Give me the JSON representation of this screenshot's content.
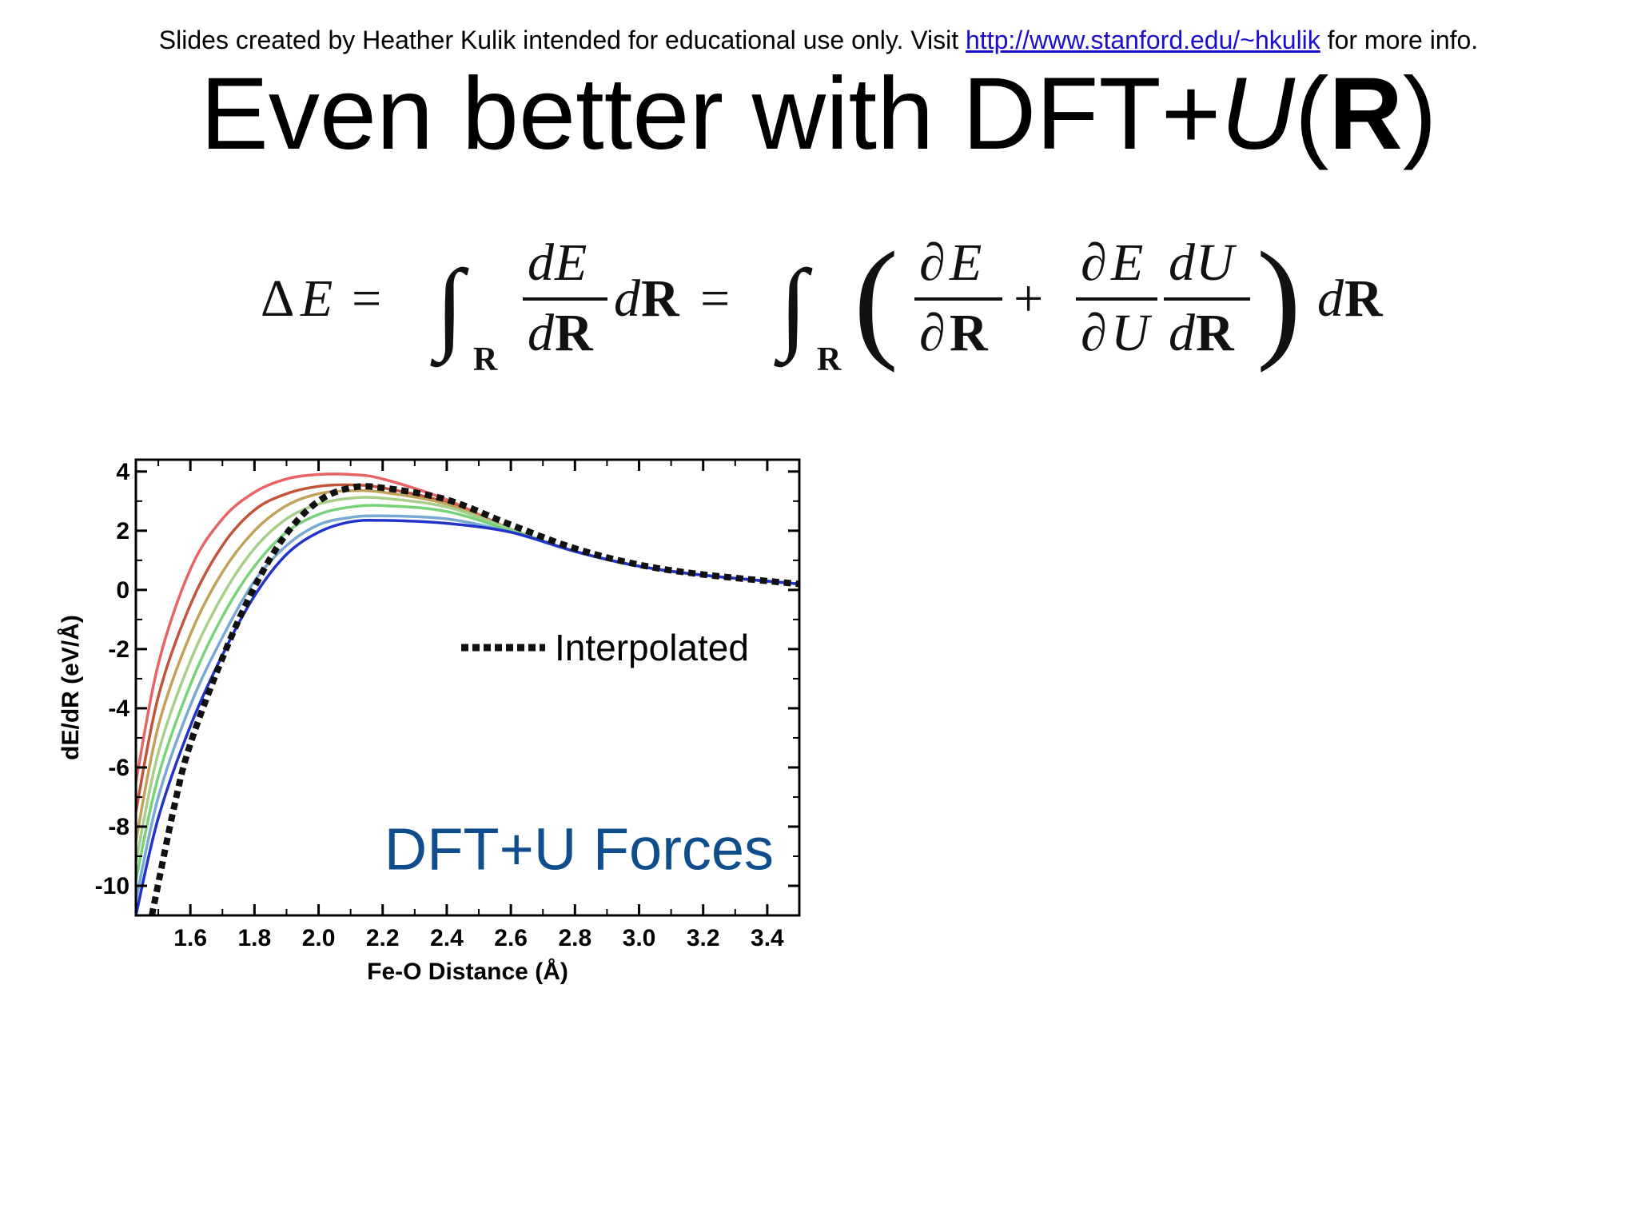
{
  "header": {
    "credit_prefix": "Slides created by Heather Kulik intended for educational use only. Visit ",
    "credit_link": "http://www.stanford.edu/~hkulik",
    "credit_suffix": " for more info."
  },
  "slide": {
    "title_prefix": "Even better with DFT+",
    "title_u": "U",
    "title_open": "(",
    "title_r": "R",
    "title_close": ")"
  },
  "equation": {
    "delta": "Δ",
    "E": "E",
    "eq": "=",
    "integral": "∫",
    "sub_R": "R",
    "d": "d",
    "R": "R",
    "partial": "∂",
    "plus": "+",
    "U": "U",
    "lparen": "(",
    "rparen": ")"
  },
  "chart_data": {
    "type": "line",
    "xlabel": "Fe-O Distance (Å)",
    "ylabel": "dE/dR (eV/Å)",
    "xlim": [
      1.43,
      3.5
    ],
    "ylim": [
      -11,
      4.4
    ],
    "xticks": [
      "1.6",
      "1.8",
      "2.0",
      "2.2",
      "2.4",
      "2.6",
      "2.8",
      "3.0",
      "3.2",
      "3.4"
    ],
    "yticks": [
      "4",
      "2",
      "0",
      "-2",
      "-4",
      "-6",
      "-8",
      "-10"
    ],
    "legend": {
      "label": "Interpolated",
      "placement": "middle-right"
    },
    "annotation": "DFT+U Forces",
    "annotation_color": "#0f4d8c",
    "series": [
      {
        "color": "#e86464",
        "x": [
          1.43,
          1.5,
          1.6,
          1.7,
          1.8,
          1.9,
          2.0,
          2.1,
          2.2,
          2.4,
          2.6,
          2.8,
          3.0,
          3.2,
          3.5
        ],
        "y": [
          -6.5,
          -2.5,
          0.7,
          2.4,
          3.3,
          3.75,
          3.9,
          3.9,
          3.75,
          3.05,
          2.05,
          1.3,
          0.8,
          0.5,
          0.2
        ]
      },
      {
        "color": "#c1553a",
        "x": [
          1.43,
          1.5,
          1.6,
          1.7,
          1.8,
          1.9,
          2.0,
          2.1,
          2.2,
          2.4,
          2.6,
          2.8,
          3.0,
          3.2,
          3.5
        ],
        "y": [
          -7.5,
          -3.6,
          -0.5,
          1.5,
          2.7,
          3.25,
          3.5,
          3.55,
          3.45,
          2.95,
          2.05,
          1.3,
          0.8,
          0.5,
          0.2
        ]
      },
      {
        "color": "#c2a15a",
        "x": [
          1.43,
          1.5,
          1.6,
          1.7,
          1.8,
          1.9,
          2.0,
          2.1,
          2.2,
          2.4,
          2.6,
          2.8,
          3.0,
          3.2,
          3.5
        ],
        "y": [
          -8.5,
          -4.6,
          -1.5,
          0.6,
          2.0,
          2.85,
          3.25,
          3.35,
          3.3,
          2.9,
          2.05,
          1.3,
          0.8,
          0.5,
          0.2
        ]
      },
      {
        "color": "#a7cf8c",
        "x": [
          1.43,
          1.5,
          1.6,
          1.7,
          1.8,
          1.9,
          2.0,
          2.1,
          2.2,
          2.4,
          2.6,
          2.8,
          3.0,
          3.2,
          3.5
        ],
        "y": [
          -9.2,
          -5.5,
          -2.4,
          -0.2,
          1.4,
          2.4,
          2.9,
          3.1,
          3.1,
          2.8,
          2.05,
          1.3,
          0.8,
          0.5,
          0.2
        ]
      },
      {
        "color": "#78d27a",
        "x": [
          1.43,
          1.5,
          1.6,
          1.7,
          1.8,
          1.9,
          2.0,
          2.1,
          2.2,
          2.4,
          2.6,
          2.8,
          3.0,
          3.2,
          3.5
        ],
        "y": [
          -9.8,
          -6.3,
          -3.2,
          -0.9,
          0.8,
          1.95,
          2.55,
          2.8,
          2.85,
          2.65,
          2.0,
          1.3,
          0.8,
          0.5,
          0.2
        ]
      },
      {
        "color": "#79a9d2",
        "x": [
          1.43,
          1.5,
          1.6,
          1.7,
          1.8,
          1.9,
          2.0,
          2.1,
          2.2,
          2.4,
          2.6,
          2.8,
          3.0,
          3.2,
          3.5
        ],
        "y": [
          -10.5,
          -7.0,
          -3.9,
          -1.6,
          0.3,
          1.5,
          2.2,
          2.45,
          2.5,
          2.4,
          1.95,
          1.3,
          0.8,
          0.5,
          0.2
        ]
      },
      {
        "color": "#2233cc",
        "x": [
          1.43,
          1.5,
          1.6,
          1.7,
          1.8,
          1.9,
          2.0,
          2.1,
          2.2,
          2.4,
          2.6,
          2.8,
          3.0,
          3.2,
          3.5
        ],
        "y": [
          -11.0,
          -7.7,
          -4.6,
          -2.2,
          -0.2,
          1.2,
          1.95,
          2.3,
          2.35,
          2.25,
          1.95,
          1.3,
          0.8,
          0.5,
          0.2
        ]
      },
      {
        "name": "Interpolated",
        "color": "#111111",
        "dashed": true,
        "x": [
          1.48,
          1.55,
          1.6,
          1.7,
          1.8,
          1.9,
          2.0,
          2.1,
          2.2,
          2.4,
          2.6,
          2.8,
          3.0,
          3.2,
          3.5
        ],
        "y": [
          -11.0,
          -7.3,
          -5.2,
          -2.3,
          0.1,
          1.9,
          3.0,
          3.45,
          3.45,
          3.05,
          2.2,
          1.4,
          0.85,
          0.52,
          0.2
        ]
      }
    ]
  }
}
